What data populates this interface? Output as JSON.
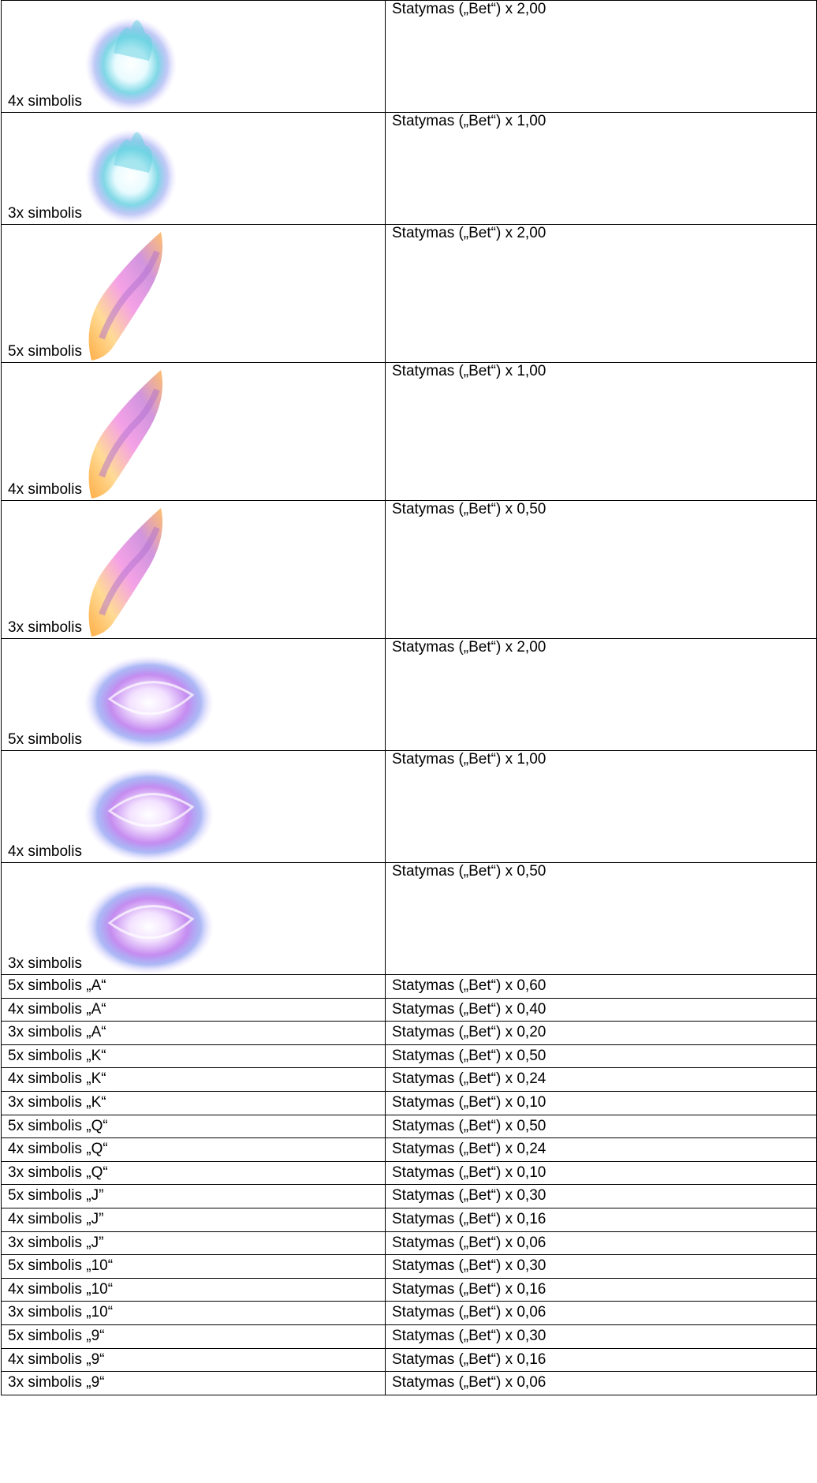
{
  "table": {
    "rows": [
      [
        "4x simbolis",
        "Statymas („Bet“) x 2,00"
      ],
      [
        "3x simbolis",
        "Statymas („Bet“) x 1,00"
      ],
      [
        "5x simbolis",
        "Statymas („Bet“) x 2,00"
      ],
      [
        "4x simbolis",
        "Statymas („Bet“) x 1,00"
      ],
      [
        "3x simbolis",
        "Statymas („Bet“) x 0,50"
      ],
      [
        "5x simbolis",
        "Statymas („Bet“) x 2,00"
      ],
      [
        "4x simbolis",
        "Statymas („Bet“) x 1,00"
      ],
      [
        "3x simbolis",
        "Statymas („Bet“) x 0,50"
      ],
      [
        "5x simbolis „A“",
        "Statymas („Bet“) x 0,60"
      ],
      [
        "4x simbolis „A“",
        "Statymas („Bet“) x 0,40"
      ],
      [
        "3x simbolis „A“",
        "Statymas („Bet“) x 0,20"
      ],
      [
        "5x simbolis „K“",
        "Statymas („Bet“) x 0,50"
      ],
      [
        "4x simbolis „K“",
        "Statymas („Bet“) x 0,24"
      ],
      [
        "3x simbolis „K“",
        "Statymas („Bet“) x 0,10"
      ],
      [
        "5x simbolis „Q“",
        "Statymas („Bet“) x 0,50"
      ],
      [
        "4x simbolis „Q“",
        "Statymas („Bet“) x 0,24"
      ],
      [
        "3x simbolis „Q“",
        "Statymas („Bet“) x 0,10"
      ],
      [
        "5x simbolis „J”",
        "Statymas („Bet“) x 0,30"
      ],
      [
        "4x simbolis „J”",
        "Statymas („Bet“) x 0,16"
      ],
      [
        "3x simbolis „J”",
        "Statymas („Bet“) x 0,06"
      ],
      [
        "5x simbolis „10“",
        "Statymas („Bet“) x 0,30"
      ],
      [
        "4x simbolis „10“",
        "Statymas („Bet“) x 0,16"
      ],
      [
        "3x simbolis „10“",
        "Statymas („Bet“) x 0,06"
      ],
      [
        "5x simbolis „9“",
        "Statymas („Bet“) x 0,30"
      ],
      [
        "4x simbolis „9“",
        "Statymas („Bet“) x 0,16"
      ],
      [
        "3x simbolis „9“",
        "Statymas („Bet“) x 0,06"
      ]
    ]
  }
}
